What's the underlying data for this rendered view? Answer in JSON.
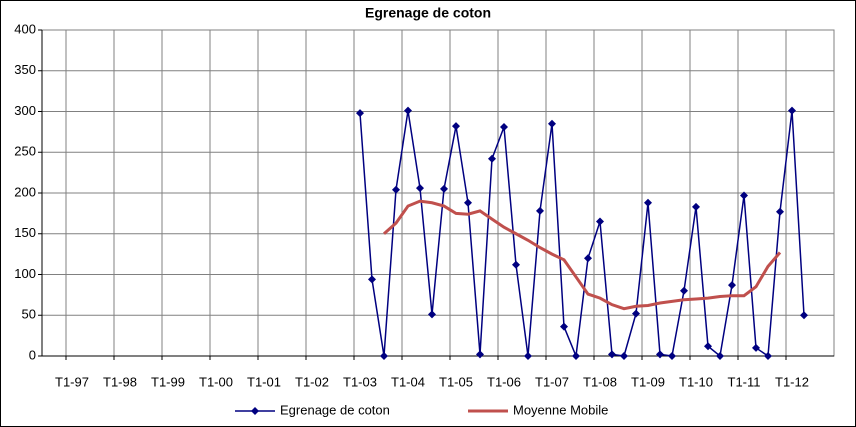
{
  "chart_data": {
    "type": "line",
    "title": "Egrenage de coton",
    "categories": [
      null,
      null,
      "T1-97",
      null,
      null,
      null,
      "T1-98",
      null,
      null,
      null,
      "T1-99",
      null,
      null,
      null,
      "T1-00",
      null,
      null,
      null,
      "T1-01",
      null,
      null,
      null,
      "T1-02",
      null,
      null,
      null,
      "T1-03",
      null,
      null,
      null,
      "T1-04",
      null,
      null,
      null,
      "T1-05",
      null,
      null,
      null,
      "T1-06",
      null,
      null,
      null,
      "T1-07",
      null,
      null,
      null,
      "T1-08",
      null,
      null,
      null,
      "T1-09",
      null,
      null,
      null,
      "T1-10",
      null,
      null,
      null,
      "T1-11",
      null,
      null,
      null,
      "T1-12",
      null,
      null,
      null
    ],
    "series": [
      {
        "name": "Egrenage de coton",
        "color": "#000080",
        "marker": "diamond",
        "values": [
          null,
          null,
          null,
          null,
          null,
          null,
          null,
          null,
          null,
          null,
          null,
          null,
          null,
          null,
          null,
          null,
          null,
          null,
          null,
          null,
          null,
          null,
          null,
          null,
          null,
          null,
          298,
          94,
          0,
          204,
          301,
          206,
          51,
          205,
          282,
          188,
          2,
          242,
          281,
          112,
          0,
          178,
          285,
          36,
          0,
          120,
          165,
          2,
          0,
          52,
          188,
          2,
          0,
          80,
          183,
          12,
          0,
          87,
          197,
          10,
          0,
          177,
          301,
          50,
          null,
          null
        ]
      },
      {
        "name": "Moyenne Mobile",
        "color": "#c0504d",
        "values": [
          null,
          null,
          null,
          null,
          null,
          null,
          null,
          null,
          null,
          null,
          null,
          null,
          null,
          null,
          null,
          null,
          null,
          null,
          null,
          null,
          null,
          null,
          null,
          null,
          null,
          null,
          null,
          null,
          150,
          163,
          184,
          190,
          188,
          184,
          175,
          174,
          178,
          168,
          158,
          150,
          142,
          133,
          125,
          118,
          97,
          76,
          71,
          63,
          58,
          61,
          62,
          65,
          67,
          69,
          70,
          71,
          73,
          74,
          74,
          85,
          110,
          127,
          null,
          null,
          null,
          null
        ]
      }
    ],
    "ylim": [
      0,
      400
    ],
    "yticks": [
      0,
      50,
      100,
      150,
      200,
      250,
      300,
      350,
      400
    ],
    "grid": true
  }
}
